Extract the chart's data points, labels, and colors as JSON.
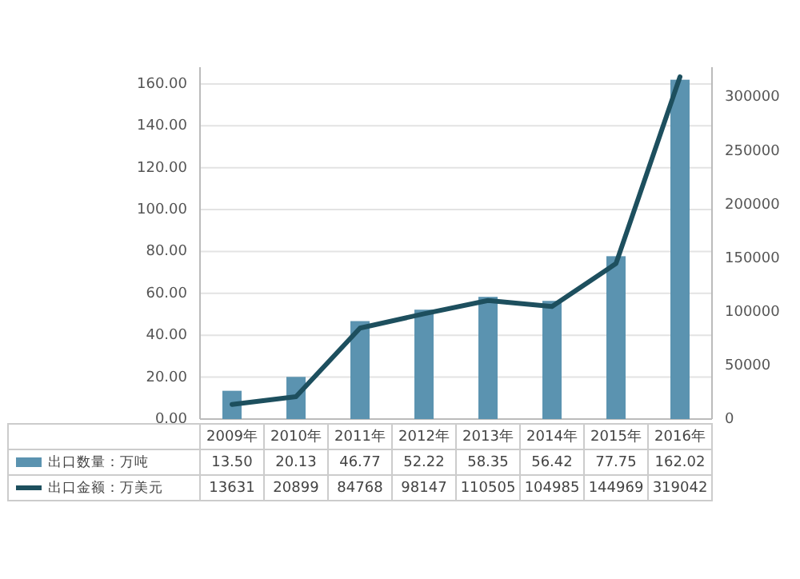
{
  "chart_data": {
    "type": "bar",
    "categories": [
      "2009年",
      "2010年",
      "2011年",
      "2012年",
      "2013年",
      "2014年",
      "2015年",
      "2016年"
    ],
    "series": [
      {
        "name": "出口数量：万吨",
        "color": "#5b93b0",
        "values": [
          13.5,
          20.13,
          46.77,
          52.22,
          58.35,
          56.42,
          77.75,
          162.02
        ],
        "value_labels": [
          "13.50",
          "20.13",
          "46.77",
          "52.22",
          "58.35",
          "56.42",
          "77.75",
          "162.02"
        ]
      },
      {
        "name": "出口金额：万美元",
        "type": "line",
        "axis": "y2",
        "color": "#1d4f5e",
        "values": [
          13631,
          20899,
          84768,
          98147,
          110505,
          104985,
          144969,
          319042
        ],
        "value_labels": [
          "13631",
          "20899",
          "84768",
          "98147",
          "110505",
          "104985",
          "144969",
          "319042"
        ]
      }
    ],
    "ylim": [
      0,
      168
    ],
    "yticks": [
      {
        "value": 0,
        "label": "0.00"
      },
      {
        "value": 20,
        "label": "20.00"
      },
      {
        "value": 40,
        "label": "40.00"
      },
      {
        "value": 60,
        "label": "60.00"
      },
      {
        "value": 80,
        "label": "80.00"
      },
      {
        "value": 100,
        "label": "100.00"
      },
      {
        "value": 120,
        "label": "120.00"
      },
      {
        "value": 140,
        "label": "140.00"
      },
      {
        "value": 160,
        "label": "160.00"
      }
    ],
    "y2lim": [
      0,
      328000
    ],
    "y2ticks": [
      0,
      50000,
      100000,
      150000,
      200000,
      250000,
      300000
    ],
    "grid": "y",
    "legend": "bottom",
    "data_labels": true,
    "line_style": "solid"
  }
}
